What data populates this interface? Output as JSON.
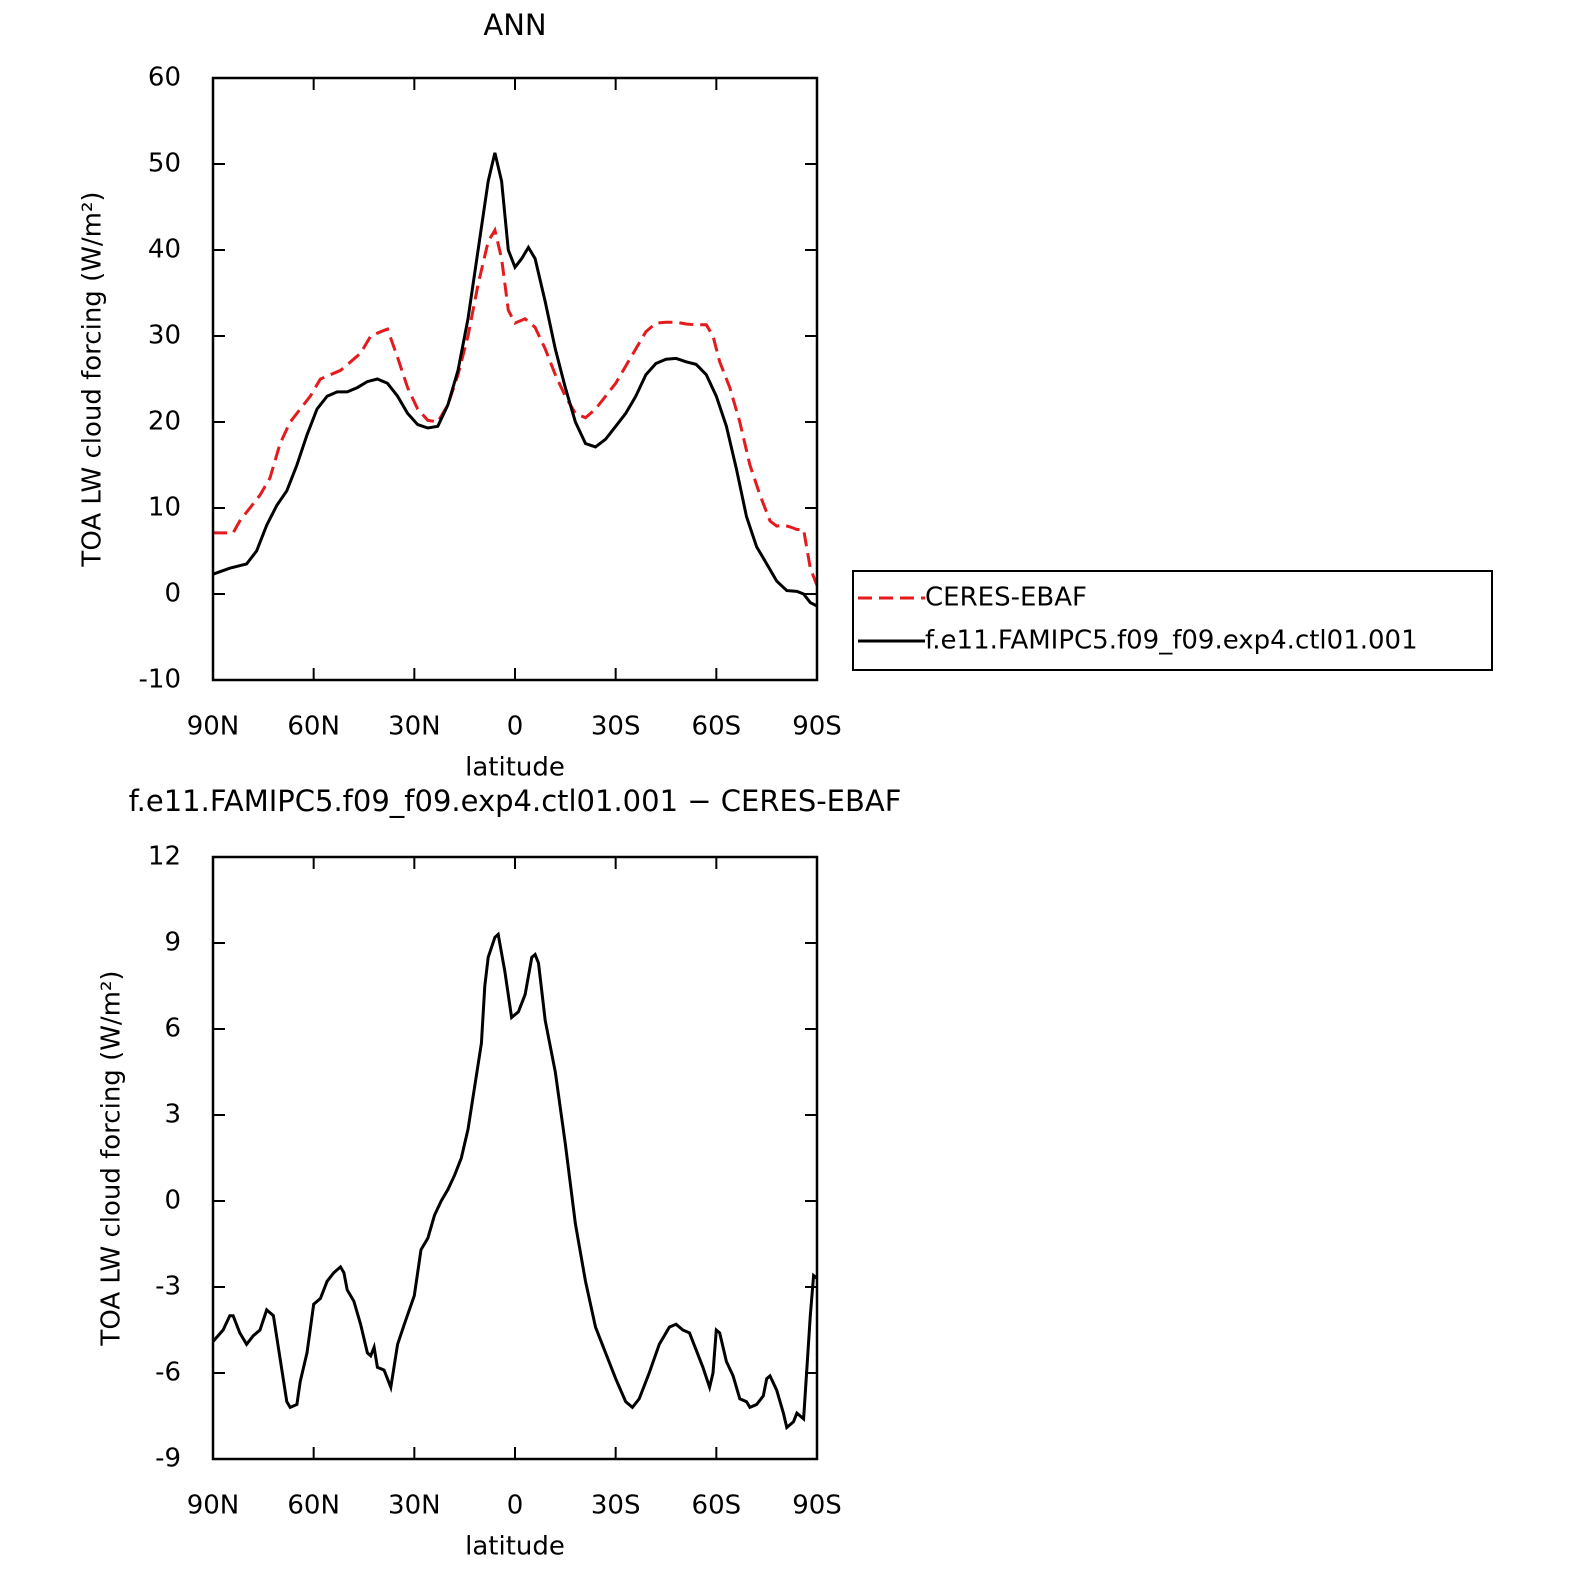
{
  "chart_data": [
    {
      "type": "line",
      "title": "ANN",
      "x_label": "latitude",
      "y_label": "TOA LW cloud forcing (W/m²)",
      "xlim": [
        90,
        -90
      ],
      "ylim": [
        -10,
        60
      ],
      "xticks": [
        {
          "value": 90,
          "label": "90N"
        },
        {
          "value": 60,
          "label": "60N"
        },
        {
          "value": 30,
          "label": "30N"
        },
        0,
        {
          "value": -30,
          "label": "30S"
        },
        {
          "value": -60,
          "label": "60S"
        },
        {
          "value": -90,
          "label": "90S"
        }
      ],
      "yticks": [
        60,
        50,
        40,
        30,
        20,
        10,
        0,
        -10
      ],
      "legend_position": "right",
      "series": [
        {
          "name": "CERES-EBAF",
          "color": "#e41a1c",
          "style": "dashed",
          "x": [
            90,
            86,
            84,
            82,
            79,
            76,
            73,
            70,
            67,
            64,
            61,
            58,
            55,
            52,
            49,
            46,
            43,
            40,
            38,
            35,
            32,
            29,
            26,
            23,
            20,
            17,
            14,
            11,
            8,
            6,
            4,
            2,
            0,
            -3,
            -6,
            -9,
            -12,
            -15,
            -18,
            -21,
            -24,
            -27,
            -30,
            -33,
            -36,
            -39,
            -42,
            -45,
            -48,
            -51,
            -54,
            -57,
            -59,
            -61,
            -64,
            -67,
            -70,
            -73,
            -76,
            -78,
            -80,
            -82,
            -84,
            -86,
            -88,
            -90
          ],
          "values": [
            7.1,
            7.1,
            7.1,
            8.5,
            10,
            11.5,
            13.5,
            17.5,
            20,
            21.5,
            23,
            25,
            25.5,
            26,
            27,
            28,
            30,
            30.5,
            30.8,
            27.5,
            24,
            21.5,
            20.2,
            20,
            22,
            25.5,
            30,
            36,
            41,
            42.3,
            39,
            33,
            31.5,
            32,
            31,
            28.5,
            25.5,
            23,
            21,
            20.5,
            21.5,
            23,
            24.5,
            26.5,
            28.5,
            30.5,
            31.5,
            31.6,
            31.6,
            31.4,
            31.3,
            31.3,
            30,
            27,
            24,
            20,
            15,
            11.5,
            8.5,
            7.9,
            8,
            7.8,
            7.5,
            7.5,
            3,
            1
          ]
        },
        {
          "name": "f.e11.FAMIPC5.f09_f09.exp4.ctl01.001",
          "color": "#000000",
          "style": "solid",
          "x": [
            90,
            85,
            80,
            77,
            74,
            71,
            68,
            65,
            62,
            59,
            56,
            53,
            50,
            47,
            44,
            41,
            38,
            35,
            32,
            29,
            26,
            23,
            20,
            17,
            14,
            11,
            8,
            6,
            4,
            2,
            0,
            -2,
            -4,
            -6,
            -9,
            -12,
            -15,
            -18,
            -21,
            -24,
            -27,
            -30,
            -33,
            -36,
            -39,
            -42,
            -45,
            -48,
            -51,
            -54,
            -57,
            -60,
            -63,
            -66,
            -69,
            -72,
            -75,
            -78,
            -81,
            -84,
            -86,
            -88,
            -90
          ],
          "values": [
            2.3,
            3,
            3.5,
            5,
            8,
            10.3,
            12,
            15,
            18.5,
            21.5,
            23,
            23.5,
            23.5,
            24,
            24.7,
            25,
            24.5,
            23,
            21,
            19.7,
            19.3,
            19.5,
            22,
            26,
            32,
            40,
            48,
            51.3,
            48,
            40,
            38,
            39,
            40.3,
            39,
            34,
            28.5,
            24,
            20,
            17.5,
            17.1,
            18,
            19.5,
            21,
            23,
            25.5,
            26.8,
            27.3,
            27.4,
            27,
            26.7,
            25.5,
            23,
            19.5,
            14.5,
            9,
            5.5,
            3.5,
            1.5,
            0.4,
            0.3,
            0,
            -1,
            -1.4
          ]
        }
      ]
    },
    {
      "type": "line",
      "title": "f.e11.FAMIPC5.f09_f09.exp4.ctl01.001 − CERES-EBAF",
      "x_label": "latitude",
      "y_label": "TOA LW cloud forcing (W/m²)",
      "xlim": [
        90,
        -90
      ],
      "ylim": [
        -9,
        12
      ],
      "xticks": [
        {
          "value": 90,
          "label": "90N"
        },
        {
          "value": 60,
          "label": "60N"
        },
        {
          "value": 30,
          "label": "30N"
        },
        0,
        {
          "value": -30,
          "label": "30S"
        },
        {
          "value": -60,
          "label": "60S"
        },
        {
          "value": -90,
          "label": "90S"
        }
      ],
      "yticks": [
        12,
        9,
        6,
        3,
        0,
        -3,
        -6,
        -9
      ],
      "series": [
        {
          "color": "#000000",
          "style": "solid",
          "x": [
            90,
            87,
            85,
            84,
            82,
            80,
            78,
            76,
            74,
            72,
            70,
            68,
            67,
            65,
            64,
            62,
            60,
            58,
            56,
            54,
            52,
            51,
            50,
            48,
            46,
            44,
            43,
            42,
            41,
            39,
            37,
            35,
            33,
            30,
            28,
            26,
            24,
            22,
            20,
            18,
            16,
            14,
            12,
            10,
            9,
            8,
            6,
            5,
            3,
            1,
            -1,
            -3,
            -5,
            -6,
            -7,
            -9,
            -12,
            -15,
            -18,
            -21,
            -24,
            -27,
            -30,
            -33,
            -35,
            -37,
            -40,
            -43,
            -46,
            -48,
            -50,
            -52,
            -54,
            -56,
            -58,
            -59,
            -60,
            -61,
            -63,
            -65,
            -67,
            -69,
            -70,
            -72,
            -74,
            -75,
            -76,
            -78,
            -80,
            -81,
            -83,
            -84,
            -86,
            -88,
            -89,
            -90
          ],
          "values": [
            -4.9,
            -4.5,
            -4,
            -4,
            -4.6,
            -5,
            -4.7,
            -4.5,
            -3.8,
            -4,
            -5.5,
            -7,
            -7.2,
            -7.1,
            -6.3,
            -5.3,
            -3.6,
            -3.4,
            -2.8,
            -2.5,
            -2.3,
            -2.5,
            -3.1,
            -3.5,
            -4.3,
            -5.3,
            -5.4,
            -5.1,
            -5.8,
            -5.9,
            -6.5,
            -5,
            -4.3,
            -3.3,
            -1.7,
            -1.3,
            -0.5,
            0,
            0.4,
            0.9,
            1.5,
            2.5,
            4,
            5.5,
            7.5,
            8.5,
            9.2,
            9.3,
            8,
            6.4,
            6.6,
            7.2,
            8.5,
            8.6,
            8.3,
            6.3,
            4.5,
            2,
            -0.8,
            -2.8,
            -4.4,
            -5.3,
            -6.2,
            -7,
            -7.2,
            -6.9,
            -6,
            -5,
            -4.4,
            -4.3,
            -4.5,
            -4.6,
            -5.2,
            -5.8,
            -6.5,
            -6,
            -4.5,
            -4.6,
            -5.6,
            -6.1,
            -6.9,
            -7,
            -7.2,
            -7.1,
            -6.8,
            -6.2,
            -6.1,
            -6.6,
            -7.4,
            -7.9,
            -7.7,
            -7.4,
            -7.6,
            -4,
            -2.6,
            -2.7
          ]
        }
      ]
    }
  ]
}
